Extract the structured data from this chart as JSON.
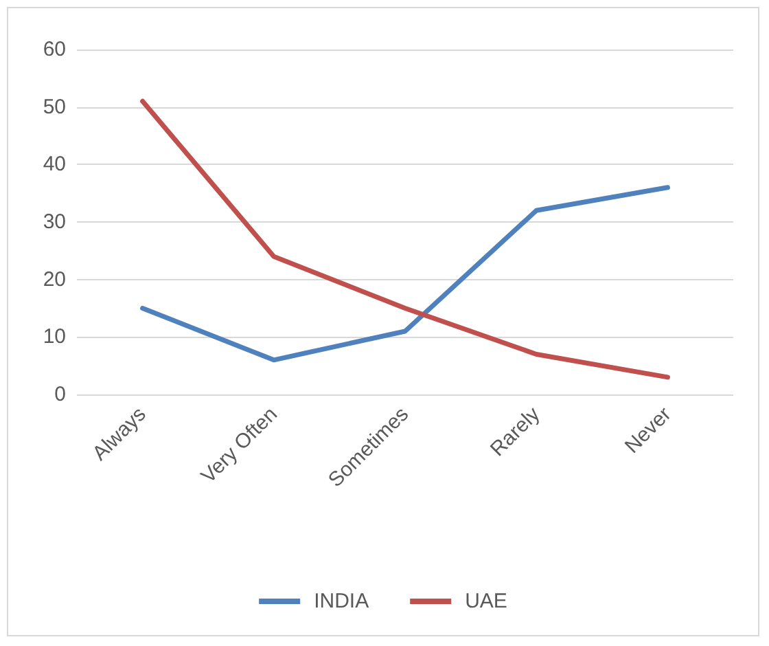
{
  "chart_data": {
    "type": "line",
    "categories": [
      "Always",
      "Very Often",
      "Sometimes",
      "Rarely",
      "Never"
    ],
    "series": [
      {
        "name": "INDIA",
        "color": "#4f81bd",
        "values": [
          15,
          6,
          11,
          32,
          36
        ]
      },
      {
        "name": "UAE",
        "color": "#c0504d",
        "values": [
          51,
          24,
          15,
          7,
          3
        ]
      }
    ],
    "ylim": [
      0,
      60
    ],
    "yticks": [
      0,
      10,
      20,
      30,
      40,
      50,
      60
    ],
    "grid": "y",
    "legend": "bottom",
    "marker": "none",
    "line_style": "solid"
  }
}
